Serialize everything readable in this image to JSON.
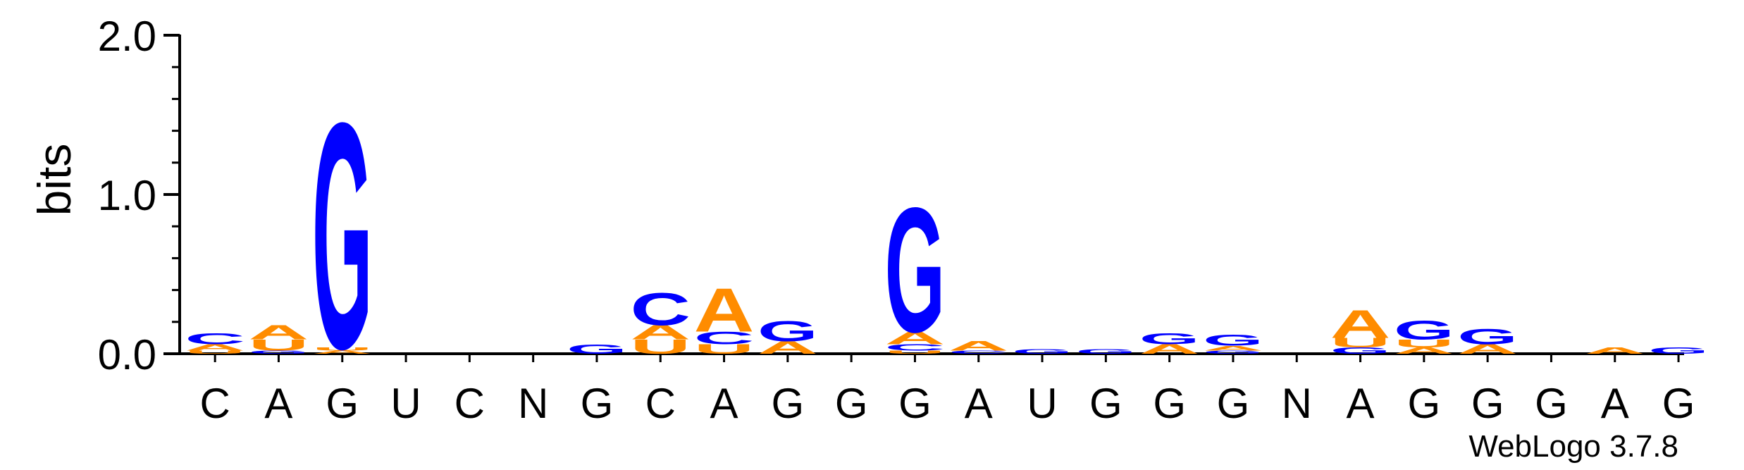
{
  "chart_data": {
    "type": "sequence-logo",
    "ylabel": "bits",
    "ylim": [
      0,
      2
    ],
    "y_ticks": [
      "0.0",
      "1.0",
      "2.0"
    ],
    "x_labels": [
      "C",
      "A",
      "G",
      "U",
      "C",
      "N",
      "G",
      "C",
      "A",
      "G",
      "G",
      "G",
      "A",
      "U",
      "G",
      "G",
      "G",
      "N",
      "A",
      "G",
      "G",
      "G",
      "A",
      "G"
    ],
    "colors": {
      "G": "#0000ff",
      "C": "#0000ff",
      "A": "#ff8c00",
      "U": "#ff8c00"
    },
    "columns": [
      [
        [
          "U",
          0.02
        ],
        [
          "A",
          0.04
        ],
        [
          "C",
          0.07
        ]
      ],
      [
        [
          "G",
          0.02
        ],
        [
          "U",
          0.07
        ],
        [
          "A",
          0.09
        ]
      ],
      [
        [
          "A",
          0.02
        ],
        [
          "U",
          0.02
        ],
        [
          "G",
          1.45
        ]
      ],
      [],
      [],
      [],
      [
        [
          "G",
          0.06
        ]
      ],
      [
        [
          "U",
          0.09
        ],
        [
          "A",
          0.09
        ],
        [
          "C",
          0.21
        ]
      ],
      [
        [
          "U",
          0.06
        ],
        [
          "C",
          0.08
        ],
        [
          "A",
          0.28
        ]
      ],
      [
        [
          "A",
          0.08
        ],
        [
          "G",
          0.13
        ]
      ],
      [],
      [
        [
          "U",
          0.02
        ],
        [
          "C",
          0.04
        ],
        [
          "A",
          0.08
        ],
        [
          "G",
          0.8
        ]
      ],
      [
        [
          "C",
          0.02
        ],
        [
          "A",
          0.06
        ]
      ],
      [
        [
          "G",
          0.03
        ]
      ],
      [
        [
          "G",
          0.03
        ]
      ],
      [
        [
          "A",
          0.06
        ],
        [
          "G",
          0.07
        ]
      ],
      [
        [
          "G",
          0.02
        ],
        [
          "A",
          0.03
        ],
        [
          "G",
          0.07
        ]
      ],
      [],
      [
        [
          "G",
          0.04
        ],
        [
          "U",
          0.06
        ],
        [
          "A",
          0.18
        ]
      ],
      [
        [
          "A",
          0.04
        ],
        [
          "U",
          0.05
        ],
        [
          "G",
          0.12
        ]
      ],
      [
        [
          "A",
          0.06
        ],
        [
          "G",
          0.1
        ]
      ],
      [],
      [
        [
          "A",
          0.04
        ]
      ],
      [
        [
          "G",
          0.04
        ]
      ]
    ],
    "credit": "WebLogo 3.7.8"
  }
}
